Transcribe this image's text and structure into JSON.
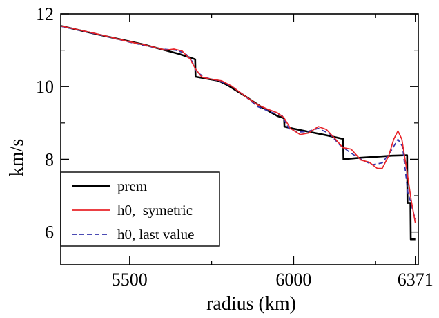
{
  "chart_data": {
    "type": "line",
    "title": "",
    "xlabel": "radius (km)",
    "ylabel": "km/s",
    "xlim": [
      5290,
      6380
    ],
    "ylim": [
      5.1,
      12.0
    ],
    "x_ticks": [
      5500,
      6000,
      6371
    ],
    "x_tick_labels": [
      "5500",
      "6000",
      "6371"
    ],
    "y_ticks": [
      6,
      8,
      10,
      12
    ],
    "y_tick_labels": [
      "6",
      "8",
      "10",
      "12"
    ],
    "grid": false,
    "legend_position": "bottom-left",
    "series": [
      {
        "name": "prem",
        "color": "#000000",
        "style": "solid",
        "width": 2.6,
        "points": [
          [
            5290,
            11.67
          ],
          [
            5400,
            11.44
          ],
          [
            5550,
            11.14
          ],
          [
            5600,
            11.02
          ],
          [
            5650,
            10.9
          ],
          [
            5700,
            10.75
          ],
          [
            5701,
            10.27
          ],
          [
            5771,
            10.16
          ],
          [
            5800,
            10.03
          ],
          [
            5850,
            9.75
          ],
          [
            5900,
            9.45
          ],
          [
            5950,
            9.19
          ],
          [
            5971,
            9.13
          ],
          [
            5972,
            8.9
          ],
          [
            6000,
            8.84
          ],
          [
            6050,
            8.75
          ],
          [
            6100,
            8.66
          ],
          [
            6151,
            8.56
          ],
          [
            6152,
            8.0
          ],
          [
            6200,
            8.04
          ],
          [
            6250,
            8.07
          ],
          [
            6300,
            8.1
          ],
          [
            6346,
            8.11
          ],
          [
            6347,
            6.8
          ],
          [
            6356,
            6.8
          ],
          [
            6357,
            5.8
          ],
          [
            6371,
            5.8
          ]
        ]
      },
      {
        "name": "h0,  symetric",
        "color": "#e8242a",
        "style": "solid",
        "width": 1.7,
        "points": [
          [
            5290,
            11.67
          ],
          [
            5400,
            11.45
          ],
          [
            5500,
            11.23
          ],
          [
            5540,
            11.16
          ],
          [
            5580,
            11.07
          ],
          [
            5610,
            11.0
          ],
          [
            5635,
            11.03
          ],
          [
            5660,
            10.98
          ],
          [
            5685,
            10.75
          ],
          [
            5700,
            10.5
          ],
          [
            5720,
            10.26
          ],
          [
            5750,
            10.2
          ],
          [
            5780,
            10.16
          ],
          [
            5810,
            10.02
          ],
          [
            5850,
            9.75
          ],
          [
            5890,
            9.5
          ],
          [
            5920,
            9.38
          ],
          [
            5950,
            9.28
          ],
          [
            5970,
            9.15
          ],
          [
            5990,
            8.85
          ],
          [
            6020,
            8.68
          ],
          [
            6045,
            8.72
          ],
          [
            6075,
            8.9
          ],
          [
            6100,
            8.82
          ],
          [
            6125,
            8.58
          ],
          [
            6150,
            8.32
          ],
          [
            6175,
            8.28
          ],
          [
            6205,
            7.98
          ],
          [
            6230,
            7.92
          ],
          [
            6255,
            7.75
          ],
          [
            6270,
            7.75
          ],
          [
            6290,
            8.1
          ],
          [
            6305,
            8.55
          ],
          [
            6318,
            8.78
          ],
          [
            6330,
            8.55
          ],
          [
            6345,
            7.7
          ],
          [
            6358,
            6.9
          ],
          [
            6371,
            6.25
          ]
        ]
      },
      {
        "name": "h0, last value",
        "color": "#3333aa",
        "style": "dashed",
        "width": 1.7,
        "points": [
          [
            5290,
            11.66
          ],
          [
            5400,
            11.44
          ],
          [
            5500,
            11.22
          ],
          [
            5550,
            11.12
          ],
          [
            5600,
            11.03
          ],
          [
            5640,
            11.0
          ],
          [
            5670,
            10.92
          ],
          [
            5690,
            10.7
          ],
          [
            5705,
            10.4
          ],
          [
            5730,
            10.25
          ],
          [
            5770,
            10.16
          ],
          [
            5810,
            10.02
          ],
          [
            5850,
            9.75
          ],
          [
            5890,
            9.45
          ],
          [
            5930,
            9.3
          ],
          [
            5965,
            9.2
          ],
          [
            5985,
            8.85
          ],
          [
            6010,
            8.75
          ],
          [
            6040,
            8.76
          ],
          [
            6075,
            8.85
          ],
          [
            6110,
            8.7
          ],
          [
            6140,
            8.4
          ],
          [
            6170,
            8.2
          ],
          [
            6205,
            8.0
          ],
          [
            6240,
            7.85
          ],
          [
            6270,
            7.9
          ],
          [
            6295,
            8.2
          ],
          [
            6318,
            8.55
          ],
          [
            6332,
            8.35
          ],
          [
            6348,
            7.1
          ],
          [
            6360,
            6.7
          ],
          [
            6371,
            6.35
          ]
        ]
      }
    ]
  }
}
